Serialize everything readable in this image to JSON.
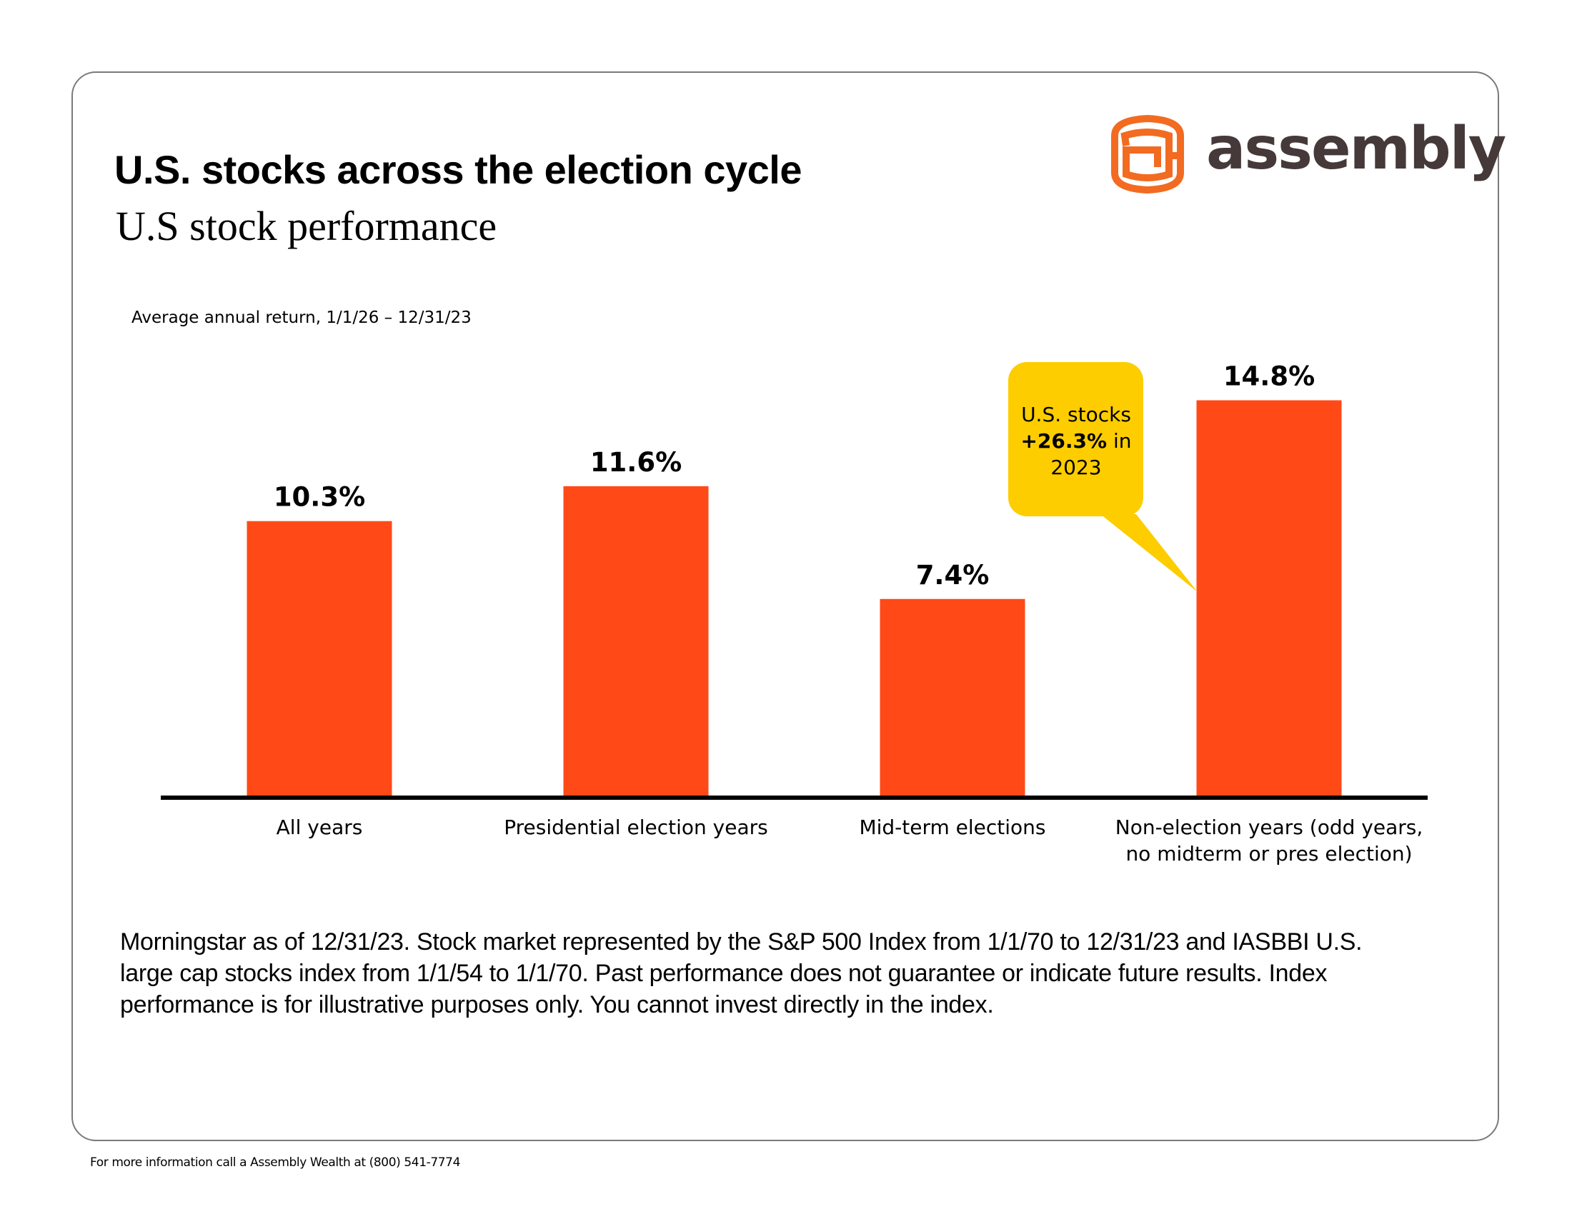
{
  "header": {
    "title": "U.S. stocks across the election cycle",
    "subtitle": "U.S stock performance",
    "brand": "assembly",
    "brand_icon": "assembly-logo-icon"
  },
  "colors": {
    "bar": "#ff4a17",
    "callout": "#fdcd00",
    "logo_orange": "#f26b21",
    "logo_text": "#45393a",
    "axis": "#000000"
  },
  "chart_data": {
    "type": "bar",
    "title": "U.S. stocks across the election cycle",
    "subtitle": "U.S stock performance",
    "ylabel": "Average annual return, 1/1/26 – 12/31/23",
    "xlabel": "",
    "unit": "%",
    "ylim": [
      0,
      16
    ],
    "grid": false,
    "categories": [
      "All years",
      "Presidential election years",
      "Mid-term elections",
      "Non-election years (odd years, no midterm or pres election)"
    ],
    "category_lines": [
      [
        "All years"
      ],
      [
        "Presidential election years"
      ],
      [
        "Mid-term elections"
      ],
      [
        "Non-election years (odd years,",
        "no midterm or pres election)"
      ]
    ],
    "values": [
      10.3,
      11.6,
      7.4,
      14.8
    ],
    "data_labels": [
      "10.3%",
      "11.6%",
      "7.4%",
      "14.8%"
    ],
    "annotations": [
      {
        "target_category": "Non-election years (odd years, no midterm or pres election)",
        "lines": [
          [
            {
              "text": "U.S. stocks",
              "bold": false
            }
          ],
          [
            {
              "text": "+26.3%",
              "bold": true
            },
            {
              "text": " in",
              "bold": false
            }
          ],
          [
            {
              "text": "2023",
              "bold": false
            }
          ]
        ]
      }
    ]
  },
  "footnote": "Morningstar as of 12/31/23. Stock market represented by the S&P 500 Index from 1/1/70 to 12/31/23 and IASBBI U.S. large cap stocks index from 1/1/54 to 1/1/70. Past performance does not guarantee or indicate future results. Index performance is for illustrative purposes only. You cannot invest directly in the index.",
  "contact": "For more information call a Assembly Wealth at (800) 541-7774"
}
